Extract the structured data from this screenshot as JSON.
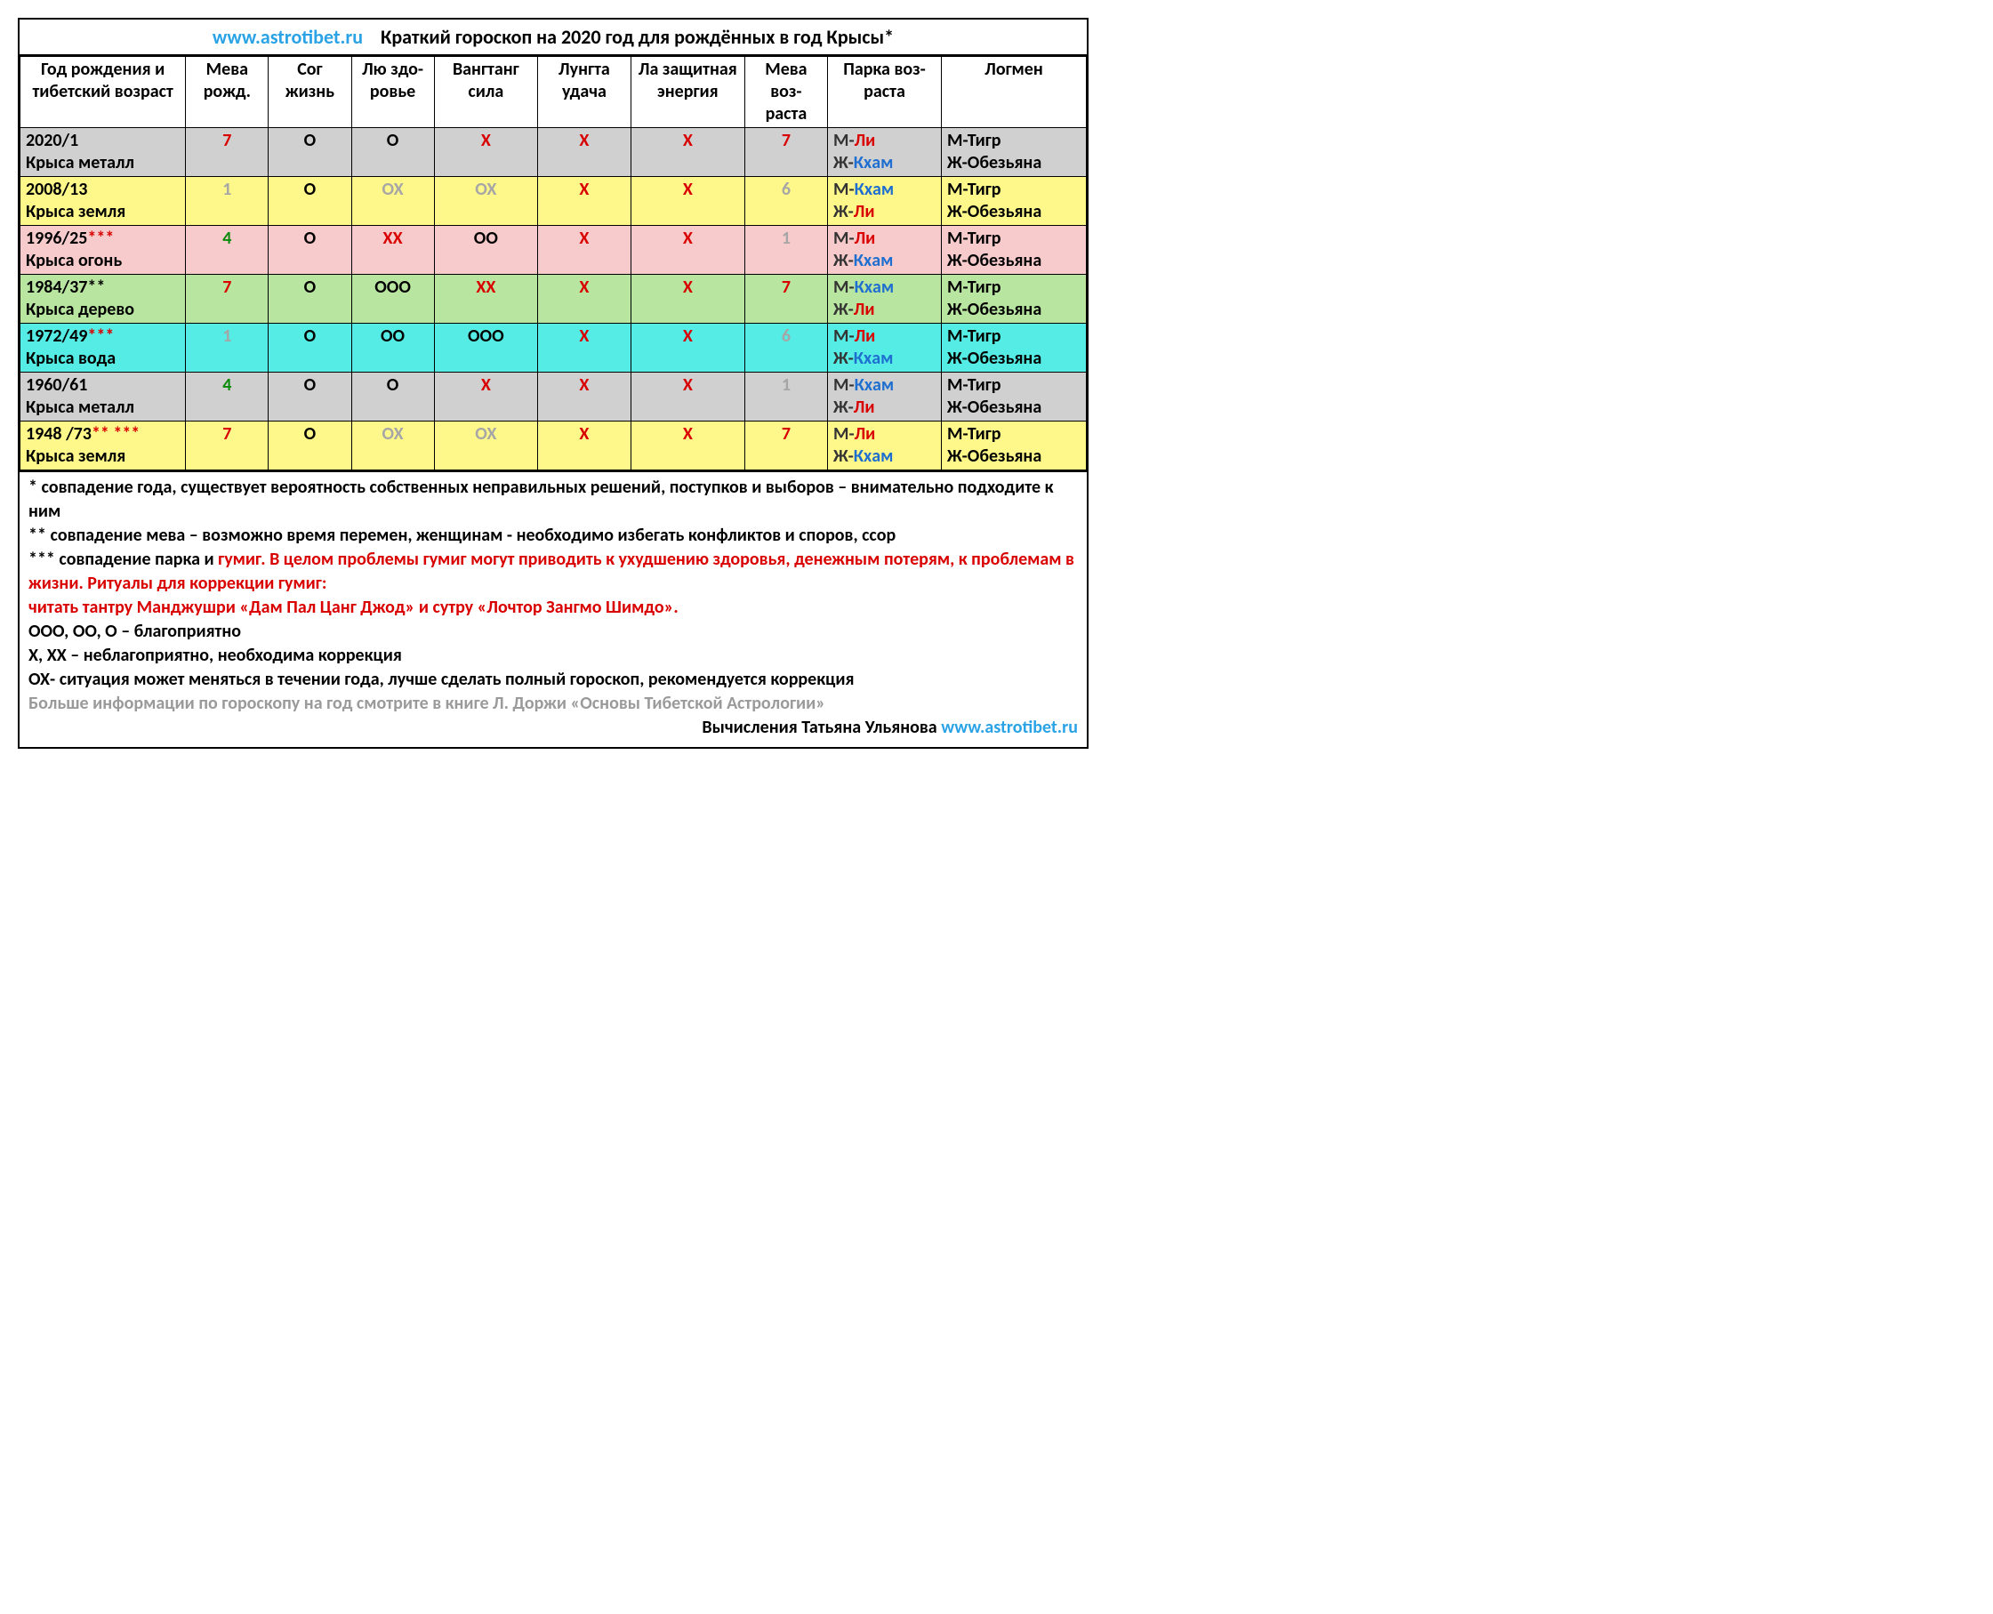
{
  "title": {
    "url": "www.astrotibet.ru",
    "text": "Краткий гороскоп на 2020 год для рождённых в год Крысы*"
  },
  "headers": {
    "year": "Год рождения и тибетский возраст",
    "meva_birth": "Мева рожд.",
    "sog": "Сог жизнь",
    "lu": "Лю здо-ровье",
    "vangtang": "Вангтанг сила",
    "lungta": "Лунгта удача",
    "la": "Ла защитная энергия",
    "meva_age": "Мева воз-раста",
    "parka": "Парка воз-раста",
    "logmen": "Логмен"
  },
  "rows": [
    {
      "cls": "row-gray",
      "year_l1": "2020/1",
      "year_l1_cls": "",
      "year_l1b": "",
      "year_l1b_cls": "",
      "year_l2": "Крыса  металл",
      "meva_birth": "7",
      "meva_birth_cls": "red",
      "sog": "О",
      "sog_cls": "",
      "lu": "О",
      "lu_cls": "",
      "vang": "Х",
      "vang_cls": "red",
      "lung": "Х",
      "lung_cls": "red",
      "la": "Х",
      "la_cls": "red",
      "meva_age": "7",
      "meva_age_cls": "red",
      "parka_m": "М-",
      "parka_m_val": "Ли",
      "parka_m_cls": "red",
      "parka_f": "Ж-",
      "parka_f_val": "Кхам",
      "parka_f_cls": "blue",
      "log_m": "М-Тигр",
      "log_f": "Ж-Обезьяна"
    },
    {
      "cls": "row-yellow",
      "year_l1": "2008/13",
      "year_l1_cls": "",
      "year_l1b": "",
      "year_l1b_cls": "",
      "year_l2": "Крыса земля",
      "meva_birth": "1",
      "meva_birth_cls": "gray",
      "sog": "О",
      "sog_cls": "",
      "lu": "ОХ",
      "lu_cls": "gray",
      "vang": "ОХ",
      "vang_cls": "gray",
      "lung": "Х",
      "lung_cls": "red",
      "la": "Х",
      "la_cls": "red",
      "meva_age": "6",
      "meva_age_cls": "gray",
      "parka_m": "М-",
      "parka_m_val": "Кхам",
      "parka_m_cls": "blue",
      "parka_f": "Ж-",
      "parka_f_val": "Ли",
      "parka_f_cls": "red",
      "log_m": "М-Тигр",
      "log_f": "Ж-Обезьяна"
    },
    {
      "cls": "row-pink",
      "year_l1": "1996/25",
      "year_l1_cls": "",
      "year_l1b": "***",
      "year_l1b_cls": "red",
      "year_l2": "Крыса огонь",
      "meva_birth": "4",
      "meva_birth_cls": "green",
      "sog": "О",
      "sog_cls": "",
      "lu": "ХХ",
      "lu_cls": "red",
      "vang": "ОО",
      "vang_cls": "",
      "lung": "Х",
      "lung_cls": "red",
      "la": "Х",
      "la_cls": "red",
      "meva_age": "1",
      "meva_age_cls": "gray",
      "parka_m": "М-",
      "parka_m_val": "Ли",
      "parka_m_cls": "red",
      "parka_f": "Ж-",
      "parka_f_val": "Кхам",
      "parka_f_cls": "blue",
      "log_m": "М-Тигр",
      "log_f": "Ж-Обезьяна"
    },
    {
      "cls": "row-green",
      "year_l1": "1984/37",
      "year_l1_cls": "",
      "year_l1b": "**",
      "year_l1b_cls": "",
      "year_l2": "Крыса дерево",
      "meva_birth": "7",
      "meva_birth_cls": "red",
      "sog": "О",
      "sog_cls": "",
      "lu": "ООО",
      "lu_cls": "",
      "vang": "ХХ",
      "vang_cls": "red",
      "lung": "Х",
      "lung_cls": "red",
      "la": "Х",
      "la_cls": "red",
      "meva_age": "7",
      "meva_age_cls": "red",
      "parka_m": "М-",
      "parka_m_val": "Кхам",
      "parka_m_cls": "blue",
      "parka_f": "Ж-",
      "parka_f_val": "Ли",
      "parka_f_cls": "red",
      "log_m": "М-Тигр",
      "log_f": "Ж-Обезьяна"
    },
    {
      "cls": "row-cyan",
      "year_l1": "1972/49",
      "year_l1_cls": "",
      "year_l1b": "***",
      "year_l1b_cls": "red",
      "year_l2": "Крыса вода",
      "meva_birth": "1",
      "meva_birth_cls": "gray",
      "sog": "О",
      "sog_cls": "",
      "lu": "ОО",
      "lu_cls": "",
      "vang": "ООО",
      "vang_cls": "",
      "lung": "Х",
      "lung_cls": "red",
      "la": "Х",
      "la_cls": "red",
      "meva_age": "6",
      "meva_age_cls": "gray",
      "parka_m": "М-",
      "parka_m_val": "Ли",
      "parka_m_cls": "red",
      "parka_f": "Ж-",
      "parka_f_val": "Кхам",
      "parka_f_cls": "blue",
      "log_m": "М-Тигр",
      "log_f": "Ж-Обезьяна"
    },
    {
      "cls": "row-gray",
      "year_l1": "1960/61",
      "year_l1_cls": "",
      "year_l1b": "",
      "year_l1b_cls": "",
      "year_l2": "Крыса металл",
      "meva_birth": "4",
      "meva_birth_cls": "green",
      "sog": "О",
      "sog_cls": "",
      "lu": "О",
      "lu_cls": "",
      "vang": "Х",
      "vang_cls": "red",
      "lung": "Х",
      "lung_cls": "red",
      "la": "Х",
      "la_cls": "red",
      "meva_age": "1",
      "meva_age_cls": "gray",
      "parka_m": "М-",
      "parka_m_val": "Кхам",
      "parka_m_cls": "blue",
      "parka_f": "Ж-",
      "parka_f_val": "Ли",
      "parka_f_cls": "red",
      "log_m": "М-Тигр",
      "log_f": "Ж-Обезьяна"
    },
    {
      "cls": "row-yellow",
      "year_l1": "1948 /73",
      "year_l1_cls": "",
      "year_l1b": "** ***",
      "year_l1b_cls": "red",
      "year_l2": "Крыса земля",
      "meva_birth": "7",
      "meva_birth_cls": "red",
      "sog": "О",
      "sog_cls": "",
      "lu": "ОХ",
      "lu_cls": "gray",
      "vang": "ОХ",
      "vang_cls": "gray",
      "lung": "Х",
      "lung_cls": "red",
      "la": "Х",
      "la_cls": "red",
      "meva_age": "7",
      "meva_age_cls": "red",
      "parka_m": "М-",
      "parka_m_val": "Ли",
      "parka_m_cls": "red",
      "parka_f": "Ж-",
      "parka_f_val": "Кхам",
      "parka_f_cls": "blue",
      "log_m": "М-Тигр",
      "log_f": "Ж-Обезьяна"
    }
  ],
  "notes": {
    "n1": "* совпадение года, существует вероятность собственных неправильных решений, поступков и выборов – внимательно подходите к ним",
    "n2": "** совпадение мева – возможно время перемен, женщинам - необходимо избегать конфликтов и споров, ссор",
    "n3a": "*** совпадение парка и ",
    "n3b": "гумиг. В целом проблемы гумиг могут приводить к ухудшению здоровья, денежным потерям, к проблемам в жизни. Ритуалы для коррекции гумиг:",
    "n3c": "читать тантру Манджушри «Дам Пал Цанг Джод» и сутру «Лочтор Зангмо Шимдо».",
    "n4": "ООО, ОО, О – благоприятно",
    "n5": "Х, ХХ – неблагоприятно, необходима коррекция",
    "n6": "ОХ- ситуация может меняться в течении года, лучше сделать полный гороскоп, рекомендуется коррекция",
    "n7": "Больше информации по гороскопу на год смотрите в книге Л. Доржи «Основы Тибетской Астрологии»",
    "credit_text": "Вычисления Татьяна Ульянова ",
    "credit_url": "www.astrotibet.ru"
  }
}
